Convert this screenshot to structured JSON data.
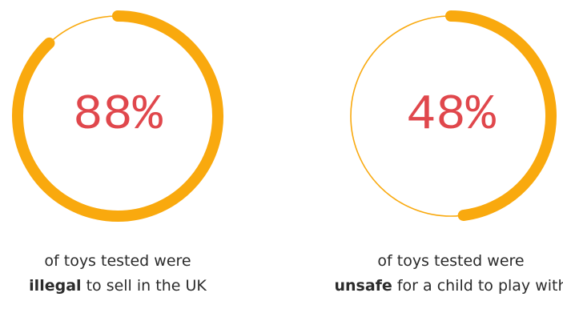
{
  "chart_data": [
    {
      "type": "pie",
      "value": 88,
      "max": 100,
      "value_label": "88%",
      "caption": {
        "before": "of toys tested were",
        "emphasis": "illegal",
        "after": "to sell in the UK"
      },
      "colors": {
        "progress": "#f9a90e",
        "track": "#f9a90e",
        "value": "#e0474c"
      }
    },
    {
      "type": "pie",
      "value": 48,
      "max": 100,
      "value_label": "48%",
      "caption": {
        "before": "of toys tested were",
        "emphasis": "unsafe",
        "after": "for a child to play with"
      },
      "colors": {
        "progress": "#f9a90e",
        "track": "#f9a90e",
        "value": "#e0474c"
      }
    }
  ]
}
